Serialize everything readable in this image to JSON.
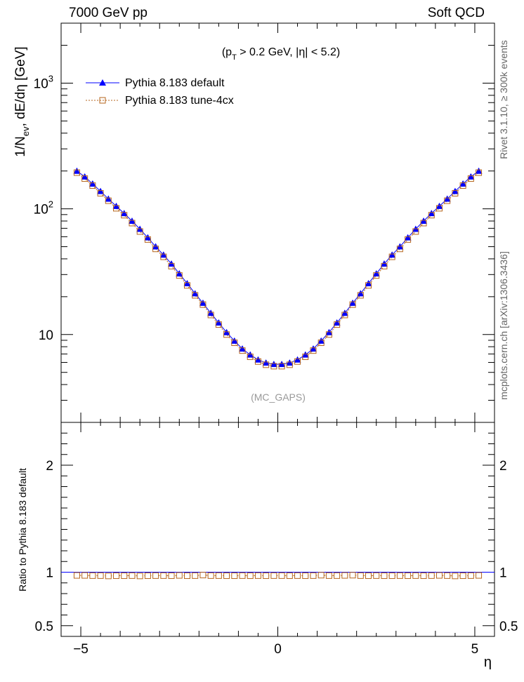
{
  "header": {
    "left": "7000 GeV pp",
    "right": "Soft QCD"
  },
  "side_labels": {
    "rivet": "Rivet 3.1.10, ≥ 300k events",
    "mcplots": "mcplots.cern.ch [arXiv:1306.3436]"
  },
  "chart_data": [
    {
      "type": "line",
      "title": "(p_T > 0.2 GeV, |η| < 5.2)",
      "title_parts": {
        "open": "(p",
        "sub": "T",
        "rest": " > 0.2 GeV, |η| < 5.2)"
      },
      "watermark": "(MC_GAPS)",
      "ylabel": "1/N_ev, dE/dη [GeV]",
      "ylabel_parts": {
        "pre": "1/N",
        "sub": "ev",
        "post": ", dE/dη [GeV]"
      },
      "xlabel": "η",
      "yscale": "log",
      "xlim": [
        -5.5,
        5.5
      ],
      "ylim": [
        2,
        3000
      ],
      "yticks": [
        {
          "value": 10,
          "base": "10",
          "exp": ""
        },
        {
          "value": 100,
          "base": "10",
          "exp": "2"
        },
        {
          "value": 1000,
          "base": "10",
          "exp": "3"
        }
      ],
      "x": [
        -5.1,
        -4.9,
        -4.7,
        -4.5,
        -4.3,
        -4.1,
        -3.9,
        -3.7,
        -3.5,
        -3.3,
        -3.1,
        -2.9,
        -2.7,
        -2.5,
        -2.3,
        -2.1,
        -1.9,
        -1.7,
        -1.5,
        -1.3,
        -1.1,
        -0.9,
        -0.7,
        -0.5,
        -0.3,
        -0.1,
        0.1,
        0.3,
        0.5,
        0.7,
        0.9,
        1.1,
        1.3,
        1.5,
        1.7,
        1.9,
        2.1,
        2.3,
        2.5,
        2.7,
        2.9,
        3.1,
        3.3,
        3.5,
        3.7,
        3.9,
        4.1,
        4.3,
        4.5,
        4.7,
        4.9,
        5.1
      ],
      "legend": [
        {
          "name": "Pythia 8.183 default",
          "color": "#0000ff",
          "marker": "triangle"
        },
        {
          "name": "Pythia 8.183 tune-4cx",
          "color": "#b5651d",
          "marker": "open-square"
        }
      ],
      "series": [
        {
          "name": "Pythia 8.183 default",
          "color": "#0000ff",
          "values": [
            200,
            180,
            158,
            138,
            120,
            105,
            92,
            80,
            69,
            59,
            50,
            43,
            36.5,
            30.5,
            25.5,
            21.2,
            17.8,
            14.8,
            12.4,
            10.4,
            8.9,
            7.7,
            6.9,
            6.3,
            5.95,
            5.8,
            5.8,
            5.95,
            6.3,
            6.9,
            7.7,
            8.9,
            10.4,
            12.4,
            14.8,
            17.8,
            21.2,
            25.5,
            30.5,
            36.5,
            43,
            50,
            59,
            69,
            80,
            92,
            105,
            120,
            138,
            158,
            180,
            200
          ]
        },
        {
          "name": "Pythia 8.183 tune-4cx",
          "color": "#b5651d",
          "values": [
            194,
            174,
            153,
            133,
            116,
            101,
            89,
            77,
            66,
            57,
            48,
            41.5,
            35,
            29.5,
            24.6,
            20.5,
            17.3,
            14.3,
            12,
            10,
            8.6,
            7.45,
            6.65,
            6.1,
            5.75,
            5.6,
            5.6,
            5.75,
            6.1,
            6.65,
            7.45,
            8.6,
            10,
            12,
            14.3,
            17.3,
            20.5,
            24.6,
            29.5,
            35,
            41.5,
            48,
            57,
            66,
            77,
            89,
            101,
            116,
            133,
            153,
            174,
            194
          ]
        }
      ]
    },
    {
      "type": "scatter",
      "ylabel": "Ratio to Pythia 8.183 default",
      "xlabel": "η",
      "xlim": [
        -5.5,
        5.5
      ],
      "ylim": [
        0.4,
        2.4
      ],
      "yticks": [
        0.5,
        1,
        2
      ],
      "ytick_labels": [
        "0.5",
        "1",
        "2"
      ],
      "xticks": [
        -5,
        0,
        5
      ],
      "xtick_labels": [
        "−5",
        "0",
        "5"
      ],
      "reference_line": 1.0,
      "series": [
        {
          "name": "Pythia 8.183 tune-4cx",
          "color": "#b5651d",
          "values": [
            0.97,
            0.97,
            0.968,
            0.968,
            0.965,
            0.967,
            0.967,
            0.968,
            0.965,
            0.967,
            0.968,
            0.968,
            0.967,
            0.97,
            0.967,
            0.968,
            0.973,
            0.968,
            0.968,
            0.967,
            0.967,
            0.968,
            0.967,
            0.968,
            0.967,
            0.968,
            0.968,
            0.967,
            0.968,
            0.967,
            0.968,
            0.972,
            0.968,
            0.968,
            0.97,
            0.972,
            0.968,
            0.967,
            0.968,
            0.967,
            0.967,
            0.968,
            0.967,
            0.968,
            0.967,
            0.968,
            0.97,
            0.968,
            0.965,
            0.967,
            0.968,
            0.97
          ]
        }
      ]
    }
  ]
}
